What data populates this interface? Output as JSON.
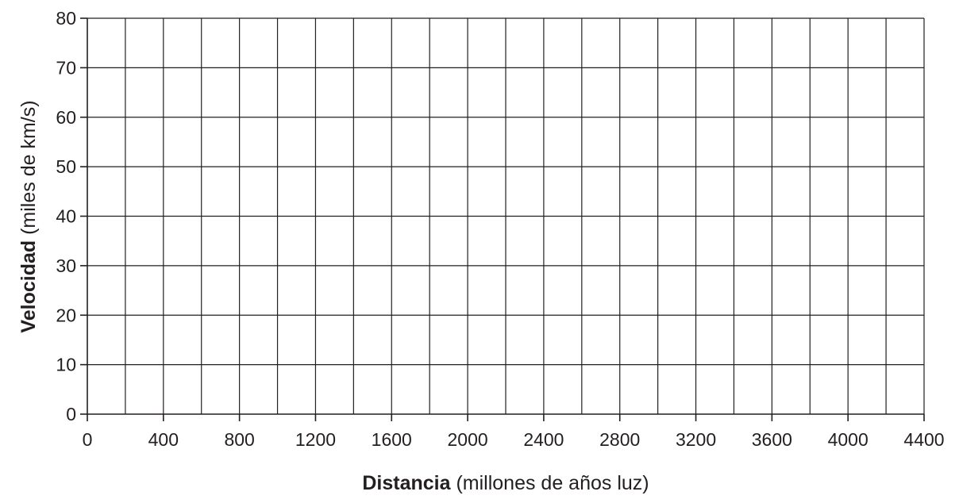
{
  "chart_data": {
    "type": "scatter",
    "title": "",
    "xlabel": {
      "bold": "Distancia",
      "normal": " (millones de años luz)"
    },
    "ylabel": {
      "bold": "Velocidad",
      "normal": " (miles de km/s)"
    },
    "xlim": [
      0,
      4400
    ],
    "ylim": [
      0,
      80
    ],
    "x_ticks": [
      "0",
      "400",
      "800",
      "1200",
      "1600",
      "2000",
      "2400",
      "2800",
      "3200",
      "3600",
      "4000",
      "4400"
    ],
    "y_ticks": [
      "0",
      "10",
      "20",
      "30",
      "40",
      "50",
      "60",
      "70",
      "80"
    ],
    "x_minor_step": 200,
    "y_step": 10,
    "grid": true,
    "series": [],
    "colors": {
      "ink": "#231f20",
      "background": "#ffffff"
    }
  }
}
